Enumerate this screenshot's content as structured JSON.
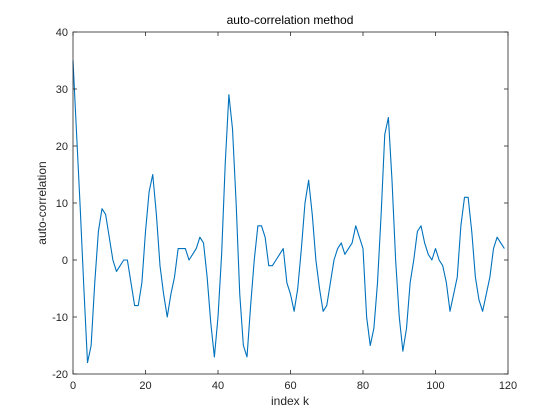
{
  "chart_data": {
    "type": "line",
    "title": "auto-correlation method",
    "xlabel": "index k",
    "ylabel": "auto-correlation",
    "xlim": [
      0,
      120
    ],
    "ylim": [
      -20,
      40
    ],
    "xticks": [
      0,
      20,
      40,
      60,
      80,
      100,
      120
    ],
    "yticks": [
      -20,
      -10,
      0,
      10,
      20,
      30,
      40
    ],
    "grid": false,
    "legend": "none",
    "series_color": "#0072BD",
    "axis_color": "#262626",
    "series": [
      {
        "x": [
          0,
          1,
          2,
          3,
          4,
          5,
          6,
          7,
          8,
          9,
          10,
          11,
          12,
          13,
          14,
          15,
          16,
          17,
          18,
          19,
          20,
          21,
          22,
          23,
          24,
          25,
          26,
          27,
          28,
          29,
          30,
          31,
          32,
          33,
          34,
          35,
          36,
          37,
          38,
          39,
          40,
          41,
          42,
          43,
          44,
          45,
          46,
          47,
          48,
          49,
          50,
          51,
          52,
          53,
          54,
          55,
          56,
          57,
          58,
          59,
          60,
          61,
          62,
          63,
          64,
          65,
          66,
          67,
          68,
          69,
          70,
          71,
          72,
          73,
          74,
          75,
          76,
          77,
          78,
          79,
          80,
          81,
          82,
          83,
          84,
          85,
          86,
          87,
          88,
          89,
          90,
          91,
          92,
          93,
          94,
          95,
          96,
          97,
          98,
          99,
          100,
          101,
          102,
          103,
          104,
          105,
          106,
          107,
          108,
          109,
          110,
          111,
          112,
          113,
          114,
          115,
          116,
          117,
          118,
          119
        ],
        "y": [
          35,
          22,
          9,
          -5,
          -18,
          -15,
          -4,
          5,
          9,
          8,
          4,
          0,
          -2,
          -1,
          0,
          0,
          -4,
          -8,
          -8,
          -4,
          5,
          12,
          15,
          8,
          -1,
          -6,
          -10,
          -6,
          -3,
          2,
          2,
          2,
          0,
          1,
          2,
          4,
          3,
          -3,
          -11,
          -17,
          -10,
          1,
          17,
          29,
          23,
          10,
          -6,
          -15,
          -17,
          -8,
          0,
          6,
          6,
          4,
          -1,
          -1,
          0,
          1,
          2,
          -4,
          -6,
          -9,
          -5,
          2,
          10,
          14,
          8,
          0,
          -5,
          -9,
          -8,
          -4,
          0,
          2,
          3,
          1,
          2,
          3,
          6,
          4,
          2,
          -10,
          -15,
          -12,
          -4,
          8,
          22,
          25,
          14,
          0,
          -10,
          -16,
          -12,
          -4,
          0,
          5,
          6,
          3,
          1,
          0,
          2,
          0,
          -1,
          -4,
          -9,
          -6,
          -3,
          6,
          11,
          11,
          5,
          -3,
          -7,
          -9,
          -6,
          -3,
          2,
          4,
          3,
          2
        ]
      }
    ]
  }
}
